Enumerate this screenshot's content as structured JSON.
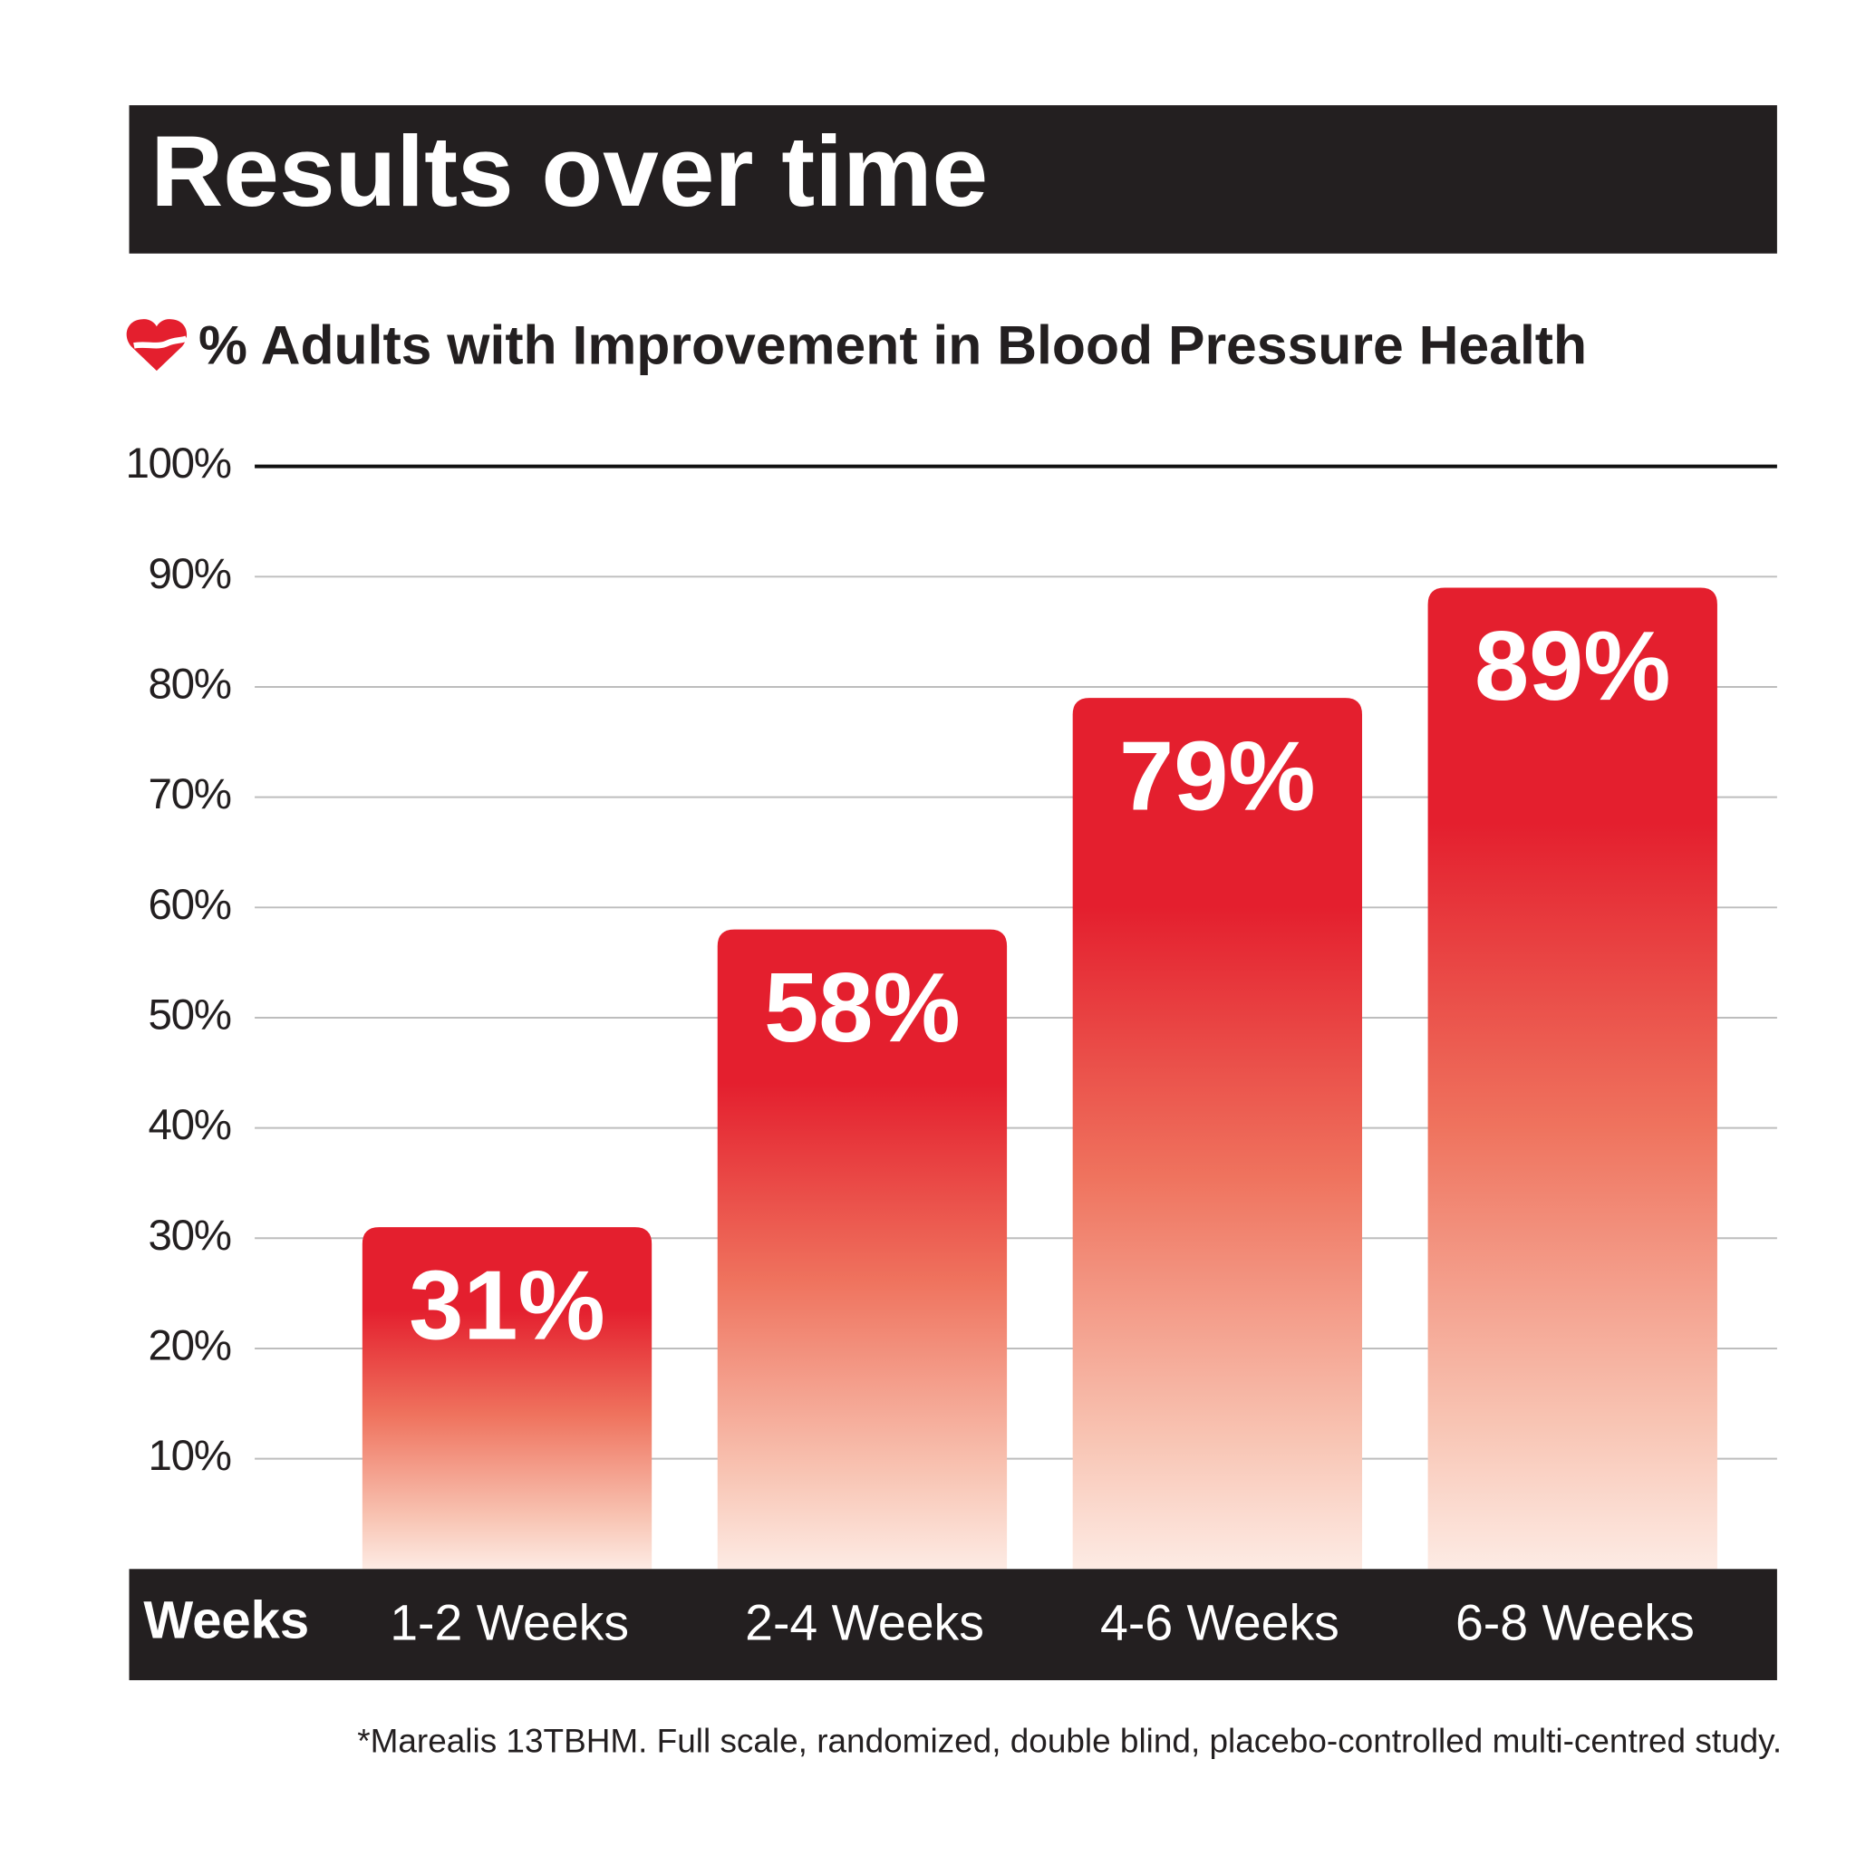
{
  "chart_data": {
    "type": "bar",
    "title": "Results over time",
    "subtitle": "% Adults with Improvement in Blood Pressure Health",
    "x_label": "Weeks",
    "footnote": "*Marealis 13TBHM. Full scale, randomized, double blind, placebo-controlled multi-centred study.",
    "categories": [
      "1-2 Weeks",
      "2-4 Weeks",
      "4-6 Weeks",
      "6-8 Weeks"
    ],
    "values": [
      31,
      58,
      79,
      89
    ],
    "value_labels": [
      "31%",
      "58%",
      "79%",
      "89%"
    ],
    "color": "#e41f2e",
    "ylim": [
      0,
      100
    ],
    "yticks": [
      {
        "value": 10,
        "label": "10%"
      },
      {
        "value": 20,
        "label": "20%"
      },
      {
        "value": 30,
        "label": "30%"
      },
      {
        "value": 40,
        "label": "40%"
      },
      {
        "value": 50,
        "label": "50%"
      },
      {
        "value": 60,
        "label": "60%"
      },
      {
        "value": 70,
        "label": "70%"
      },
      {
        "value": 80,
        "label": "80%"
      },
      {
        "value": 90,
        "label": "90%"
      },
      {
        "value": 100,
        "label": "100%"
      }
    ],
    "grid": true
  }
}
